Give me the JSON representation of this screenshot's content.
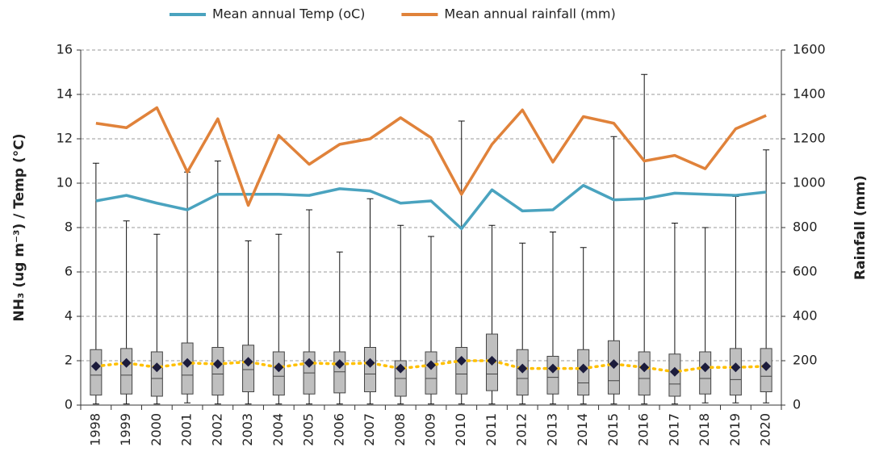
{
  "chart_data": {
    "type": "box",
    "y_label": "NH₃ (ug m⁻³) / Temp (°C)",
    "y2_label": "Rainfall  (mm)",
    "categories": [
      "1998",
      "1999",
      "2000",
      "2001",
      "2002",
      "2003",
      "2004",
      "2005",
      "2006",
      "2007",
      "2008",
      "2009",
      "2010",
      "2011",
      "2012",
      "2013",
      "2014",
      "2015",
      "2016",
      "2017",
      "2018",
      "2019",
      "2020"
    ],
    "boxes": {
      "color": "#bfbfbf",
      "mean_color": "#1c1c3c",
      "trend_color": "#ffc000",
      "min": [
        0.05,
        0.05,
        0.05,
        0.1,
        0.05,
        0.05,
        0.05,
        0.05,
        0.05,
        0.05,
        0.05,
        0.05,
        0.05,
        0.05,
        0.05,
        0.05,
        0.05,
        0.05,
        0.05,
        0.05,
        0.1,
        0.1,
        0.1
      ],
      "q1": [
        0.45,
        0.5,
        0.4,
        0.5,
        0.45,
        0.6,
        0.45,
        0.5,
        0.55,
        0.6,
        0.4,
        0.5,
        0.5,
        0.65,
        0.45,
        0.5,
        0.45,
        0.5,
        0.45,
        0.4,
        0.5,
        0.45,
        0.6
      ],
      "median": [
        1.35,
        1.35,
        1.2,
        1.35,
        1.4,
        1.6,
        1.3,
        1.45,
        1.5,
        1.4,
        1.2,
        1.2,
        1.4,
        1.4,
        1.2,
        1.25,
        1.0,
        1.1,
        1.2,
        0.95,
        1.2,
        1.15,
        1.3
      ],
      "q3": [
        2.5,
        2.55,
        2.4,
        2.8,
        2.6,
        2.7,
        2.4,
        2.4,
        2.4,
        2.6,
        2.0,
        2.4,
        2.6,
        3.2,
        2.5,
        2.2,
        2.5,
        2.9,
        2.4,
        2.3,
        2.4,
        2.55,
        2.55
      ],
      "max": [
        10.9,
        8.3,
        7.7,
        10.5,
        11.0,
        7.4,
        7.7,
        8.8,
        6.9,
        9.3,
        8.1,
        7.6,
        12.8,
        8.1,
        7.3,
        7.8,
        7.1,
        12.1,
        14.9,
        8.2,
        8.0,
        9.4,
        11.5
      ],
      "mean": [
        1.75,
        1.9,
        1.7,
        1.9,
        1.85,
        1.95,
        1.7,
        1.9,
        1.85,
        1.9,
        1.65,
        1.8,
        2.0,
        2.0,
        1.65,
        1.65,
        1.65,
        1.85,
        1.7,
        1.5,
        1.7,
        1.7,
        1.75
      ]
    },
    "series": [
      {
        "name": "Mean annual Temp (oC)",
        "color": "#4aa3bf",
        "values": [
          9.2,
          9.45,
          9.1,
          8.8,
          9.5,
          9.5,
          9.5,
          9.45,
          9.75,
          9.65,
          9.1,
          9.2,
          7.95,
          9.7,
          8.75,
          8.8,
          9.9,
          9.25,
          9.3,
          9.55,
          9.5,
          9.45,
          9.6
        ]
      },
      {
        "name": "Mean annual rainfall (mm)",
        "color": "#e0823a",
        "axis": "y2",
        "values": [
          1270,
          1250,
          1340,
          1050,
          1290,
          900,
          1215,
          1085,
          1175,
          1200,
          1295,
          1205,
          950,
          1175,
          1330,
          1095,
          1300,
          1270,
          1100,
          1125,
          1065,
          1245,
          1305
        ]
      }
    ],
    "ylim": [
      0,
      16
    ],
    "yticks": [
      0,
      2,
      4,
      6,
      8,
      10,
      12,
      14,
      16
    ],
    "y2lim": [
      0,
      1600
    ],
    "y2ticks": [
      0,
      200,
      400,
      600,
      800,
      1000,
      1200,
      1400,
      1600
    ],
    "grid": true,
    "legend": "top"
  }
}
